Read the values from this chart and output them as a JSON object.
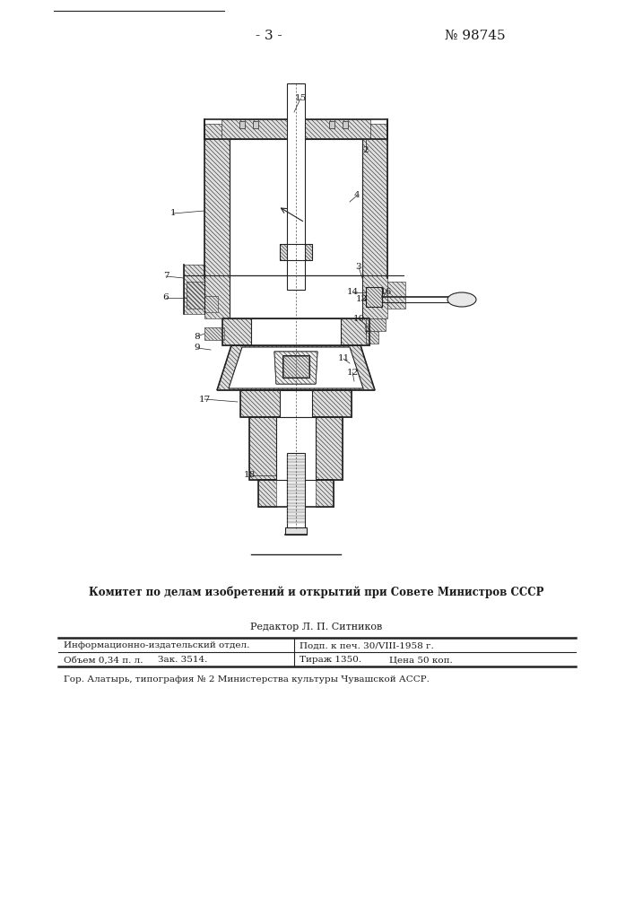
{
  "page_title_left": "- 3 -",
  "page_title_right": "№ 98745",
  "committee_text": "Комитет по делам изобретений и открытий при Совете Министров СССР",
  "editor_text": "Редактор Л. П. Ситников",
  "table_row1_col1": "Информационно-издательский отдел.",
  "table_row1_col2": "Подп. к печ. 30/VIII-1958 г.",
  "table_row2_col1": "Объем 0,34 п. л.",
  "table_row2_col2": "Зак. 3514.",
  "table_row2_col3": "Тираж 1350.",
  "table_row2_col4": "Цена 50 коп.",
  "footer_text": "Гор. Алатырь, типография № 2 Министерства культуры Чувашской АССР.",
  "bg_color": "#ffffff",
  "text_color": "#1a1a1a",
  "line_color": "#222222",
  "hatch_color": "#444444",
  "labels": [
    [
      "15",
      335,
      110
    ],
    [
      "2",
      408,
      168
    ],
    [
      "4",
      398,
      218
    ],
    [
      "1",
      193,
      238
    ],
    [
      "3",
      400,
      298
    ],
    [
      "7",
      185,
      308
    ],
    [
      "6",
      185,
      332
    ],
    [
      "14",
      393,
      326
    ],
    [
      "13",
      403,
      334
    ],
    [
      "16",
      430,
      326
    ],
    [
      "10",
      400,
      355
    ],
    [
      "5",
      408,
      368
    ],
    [
      "8",
      220,
      375
    ],
    [
      "9",
      220,
      388
    ],
    [
      "11",
      383,
      400
    ],
    [
      "12",
      393,
      415
    ],
    [
      "17",
      228,
      445
    ],
    [
      "18",
      278,
      530
    ]
  ]
}
